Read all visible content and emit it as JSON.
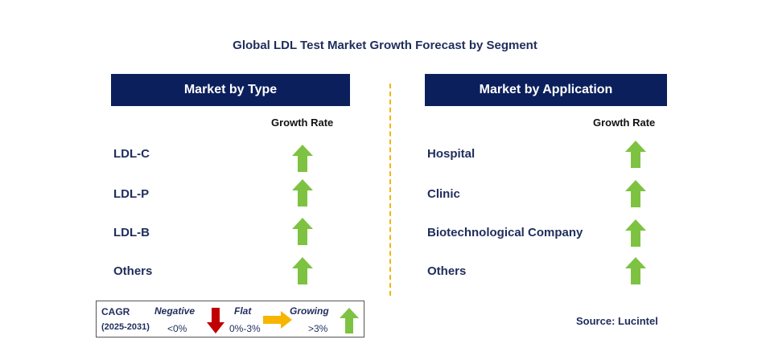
{
  "title": "Global LDL Test Market Growth Forecast by Segment",
  "left_panel": {
    "header": "Market by Type",
    "growth_header": "Growth Rate",
    "items": [
      {
        "label": "LDL-C",
        "trend": "growing"
      },
      {
        "label": "LDL-P",
        "trend": "growing"
      },
      {
        "label": "LDL-B",
        "trend": "growing"
      },
      {
        "label": "Others",
        "trend": "growing"
      }
    ]
  },
  "right_panel": {
    "header": "Market by Application",
    "growth_header": "Growth Rate",
    "items": [
      {
        "label": "Hospital",
        "trend": "growing"
      },
      {
        "label": "Clinic",
        "trend": "growing"
      },
      {
        "label": "Biotechnological Company",
        "trend": "growing"
      },
      {
        "label": "Others",
        "trend": "growing"
      }
    ]
  },
  "legend": {
    "cagr_label": "CAGR",
    "period": "(2025-2031)",
    "negative_label": "Negative",
    "negative_range": "<0%",
    "flat_label": "Flat",
    "flat_range": "0%-3%",
    "growing_label": "Growing",
    "growing_range": ">3%"
  },
  "source": "Source: Lucintel",
  "colors": {
    "header_bg": "#0b1f5c",
    "text": "#1f2d5c",
    "growing": "#7ec242",
    "negative": "#c00000",
    "flat": "#f7b500",
    "divider": "#f2b705"
  }
}
